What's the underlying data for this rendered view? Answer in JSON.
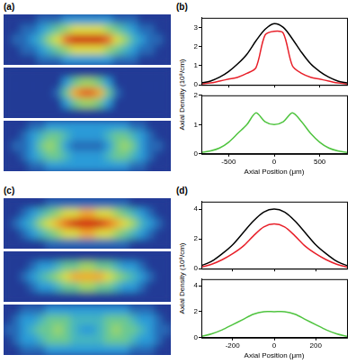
{
  "chart_data": [
    {
      "type": "heatmap",
      "label": "(a)",
      "zlim": [
        0,
        9
      ],
      "cells": [
        [
          [
            0,
            0,
            0,
            0,
            1,
            1,
            1,
            2,
            2,
            2,
            2,
            2,
            2,
            1,
            1,
            1,
            0,
            0,
            0,
            0
          ],
          [
            0,
            0,
            1,
            1,
            2,
            3,
            4,
            5,
            6,
            6,
            6,
            6,
            5,
            4,
            3,
            2,
            1,
            1,
            0,
            0
          ],
          [
            0,
            1,
            1,
            2,
            3,
            5,
            6,
            8,
            9,
            9,
            9,
            9,
            8,
            6,
            5,
            3,
            2,
            1,
            1,
            0
          ],
          [
            0,
            0,
            1,
            1,
            2,
            3,
            4,
            5,
            6,
            6,
            6,
            6,
            5,
            4,
            3,
            2,
            1,
            1,
            0,
            0
          ],
          [
            0,
            0,
            0,
            0,
            1,
            1,
            1,
            2,
            2,
            2,
            2,
            2,
            2,
            1,
            1,
            1,
            0,
            0,
            0,
            0
          ]
        ],
        [
          [
            0,
            0,
            0,
            0,
            0,
            0,
            0,
            0,
            0,
            0,
            0,
            0,
            0,
            0,
            0,
            0,
            0,
            0,
            0,
            0
          ],
          [
            0,
            0,
            0,
            0,
            0,
            0,
            0,
            2,
            4,
            5,
            5,
            4,
            2,
            0,
            0,
            0,
            0,
            0,
            0,
            0
          ],
          [
            0,
            0,
            0,
            0,
            0,
            0,
            1,
            4,
            7,
            8,
            8,
            7,
            4,
            1,
            0,
            0,
            0,
            0,
            0,
            0
          ],
          [
            0,
            0,
            0,
            0,
            0,
            0,
            0,
            2,
            4,
            5,
            5,
            4,
            2,
            0,
            0,
            0,
            0,
            0,
            0,
            0
          ],
          [
            0,
            0,
            0,
            0,
            0,
            0,
            0,
            0,
            0,
            0,
            0,
            0,
            0,
            0,
            0,
            0,
            0,
            0,
            0,
            0
          ]
        ],
        [
          [
            0,
            0,
            0,
            1,
            1,
            2,
            2,
            2,
            2,
            2,
            2,
            2,
            2,
            2,
            2,
            1,
            1,
            0,
            0,
            0
          ],
          [
            0,
            0,
            1,
            2,
            3,
            4,
            4,
            3,
            2,
            2,
            2,
            2,
            3,
            4,
            4,
            3,
            2,
            1,
            0,
            0
          ],
          [
            0,
            1,
            1,
            2,
            4,
            5,
            4,
            2,
            1,
            1,
            1,
            1,
            2,
            4,
            5,
            4,
            2,
            1,
            1,
            0
          ],
          [
            0,
            0,
            1,
            2,
            3,
            4,
            4,
            3,
            2,
            2,
            2,
            2,
            3,
            4,
            4,
            3,
            2,
            1,
            0,
            0
          ],
          [
            0,
            0,
            0,
            1,
            1,
            2,
            2,
            2,
            2,
            2,
            2,
            2,
            2,
            2,
            2,
            1,
            1,
            0,
            0,
            0
          ]
        ]
      ]
    },
    {
      "type": "line",
      "label": "(b)",
      "xlabel": "Axial Position (μm)",
      "ylabel": "Axial Density (10⁸/cm)",
      "xlim": [
        -800,
        800
      ],
      "xticks": [
        -500,
        0,
        500
      ],
      "x": [
        -800,
        -700,
        -600,
        -500,
        -400,
        -300,
        -200,
        -100,
        0,
        100,
        200,
        300,
        400,
        500,
        600,
        700,
        800
      ],
      "subplots": [
        {
          "ylim": [
            0,
            3.5
          ],
          "yticks": [
            0,
            1,
            2,
            3
          ],
          "series": [
            {
              "color": "#000000",
              "values": [
                0.1,
                0.2,
                0.4,
                0.7,
                1.1,
                1.6,
                2.3,
                2.9,
                3.2,
                3.0,
                2.4,
                1.7,
                1.1,
                0.7,
                0.4,
                0.2,
                0.1
              ]
            },
            {
              "color": "#e8202a",
              "values": [
                0.05,
                0.1,
                0.2,
                0.3,
                0.4,
                0.6,
                0.9,
                2.6,
                2.8,
                2.7,
                1.0,
                0.6,
                0.4,
                0.3,
                0.2,
                0.1,
                0.05
              ]
            }
          ]
        },
        {
          "ylim": [
            0,
            2
          ],
          "yticks": [
            0,
            1,
            2
          ],
          "series": [
            {
              "color": "#4fc43f",
              "values": [
                0.05,
                0.1,
                0.2,
                0.4,
                0.7,
                1.0,
                1.4,
                1.1,
                1.0,
                1.1,
                1.4,
                1.1,
                0.7,
                0.4,
                0.2,
                0.1,
                0.05
              ]
            }
          ]
        }
      ]
    },
    {
      "type": "heatmap",
      "label": "(c)",
      "zlim": [
        0,
        9
      ],
      "cells": [
        [
          [
            0,
            0,
            0,
            0,
            0,
            1,
            1,
            1,
            1,
            1,
            1,
            1,
            1,
            1,
            1,
            0,
            0,
            0,
            0,
            0
          ],
          [
            0,
            0,
            1,
            2,
            3,
            4,
            5,
            6,
            6,
            7,
            7,
            6,
            6,
            5,
            4,
            3,
            2,
            1,
            0,
            0
          ],
          [
            0,
            1,
            2,
            3,
            5,
            6,
            7,
            8,
            9,
            9,
            9,
            9,
            8,
            7,
            6,
            5,
            3,
            2,
            1,
            0
          ],
          [
            0,
            0,
            1,
            2,
            3,
            4,
            5,
            6,
            6,
            7,
            7,
            6,
            6,
            5,
            4,
            3,
            2,
            1,
            0,
            0
          ],
          [
            0,
            0,
            0,
            0,
            0,
            1,
            1,
            1,
            1,
            1,
            1,
            1,
            1,
            1,
            1,
            0,
            0,
            0,
            0,
            0
          ]
        ],
        [
          [
            0,
            0,
            0,
            0,
            0,
            0,
            0,
            0,
            0,
            0,
            0,
            0,
            0,
            0,
            0,
            0,
            0,
            0,
            0,
            0
          ],
          [
            0,
            0,
            0,
            1,
            2,
            2,
            3,
            4,
            4,
            5,
            5,
            4,
            4,
            3,
            2,
            2,
            1,
            0,
            0,
            0
          ],
          [
            0,
            0,
            1,
            2,
            3,
            4,
            5,
            6,
            7,
            7,
            7,
            7,
            6,
            5,
            4,
            3,
            2,
            1,
            0,
            0
          ],
          [
            0,
            0,
            0,
            1,
            2,
            2,
            3,
            4,
            4,
            5,
            5,
            4,
            4,
            3,
            2,
            2,
            1,
            0,
            0,
            0
          ],
          [
            0,
            0,
            0,
            0,
            0,
            0,
            0,
            0,
            0,
            0,
            0,
            0,
            0,
            0,
            0,
            0,
            0,
            0,
            0,
            0
          ]
        ],
        [
          [
            0,
            0,
            1,
            1,
            1,
            2,
            2,
            2,
            2,
            2,
            2,
            2,
            2,
            2,
            2,
            1,
            1,
            1,
            0,
            0
          ],
          [
            0,
            1,
            2,
            2,
            3,
            4,
            4,
            4,
            3,
            3,
            3,
            3,
            4,
            4,
            4,
            3,
            2,
            2,
            1,
            0
          ],
          [
            1,
            1,
            2,
            3,
            4,
            4,
            5,
            4,
            3,
            2,
            2,
            3,
            4,
            5,
            4,
            4,
            3,
            2,
            1,
            1
          ],
          [
            0,
            1,
            2,
            2,
            3,
            4,
            4,
            4,
            3,
            3,
            3,
            3,
            4,
            4,
            4,
            3,
            2,
            2,
            1,
            0
          ],
          [
            0,
            0,
            1,
            1,
            1,
            2,
            2,
            2,
            2,
            2,
            2,
            2,
            2,
            2,
            2,
            1,
            1,
            1,
            0,
            0
          ]
        ]
      ]
    },
    {
      "type": "line",
      "label": "(d)",
      "xlabel": "Axial Position (μm)",
      "ylabel": "Axial Density (10⁸/cm)",
      "xlim": [
        -350,
        350
      ],
      "xticks": [
        -200,
        0,
        200
      ],
      "x": [
        -350,
        -300,
        -250,
        -200,
        -150,
        -100,
        -50,
        0,
        50,
        100,
        150,
        200,
        250,
        300,
        350
      ],
      "subplots": [
        {
          "ylim": [
            0,
            4.5
          ],
          "yticks": [
            0,
            2,
            4
          ],
          "series": [
            {
              "color": "#000000",
              "values": [
                0.2,
                0.5,
                1.0,
                1.6,
                2.4,
                3.2,
                3.8,
                4.0,
                3.8,
                3.2,
                2.4,
                1.6,
                1.0,
                0.5,
                0.2
              ]
            },
            {
              "color": "#e8202a",
              "values": [
                0.1,
                0.3,
                0.6,
                1.0,
                1.5,
                2.2,
                2.8,
                3.0,
                2.8,
                2.2,
                1.5,
                1.0,
                0.6,
                0.3,
                0.1
              ]
            }
          ]
        },
        {
          "ylim": [
            0,
            4.5
          ],
          "yticks": [
            0,
            2,
            4
          ],
          "series": [
            {
              "color": "#4fc43f",
              "values": [
                0.1,
                0.3,
                0.6,
                1.0,
                1.4,
                1.8,
                2.0,
                2.0,
                2.0,
                1.8,
                1.4,
                1.0,
                0.6,
                0.3,
                0.1
              ]
            }
          ]
        }
      ]
    }
  ]
}
